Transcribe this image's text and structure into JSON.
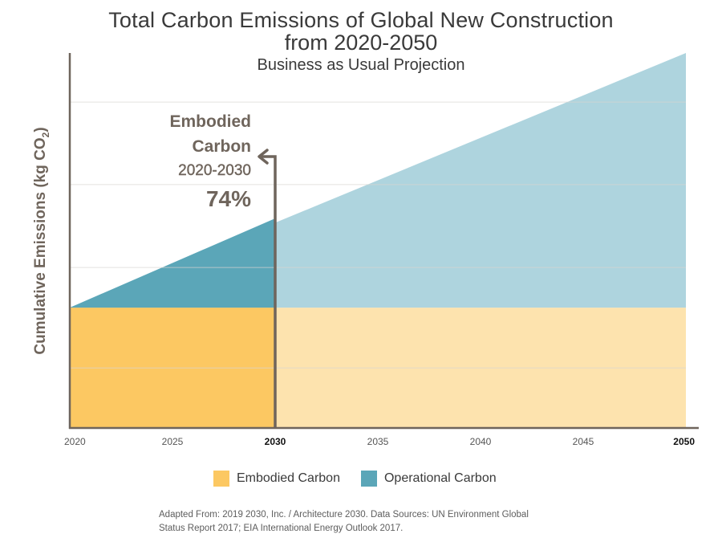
{
  "chart_data": {
    "type": "area",
    "title": "Total Carbon Emissions of Global New Construction",
    "title_line2": "from 2020-2050",
    "subtitle": "Business as Usual Projection",
    "xlabel": "",
    "ylabel": "Cumulative Emissions (kg CO",
    "ylabel_sub": "2",
    "ylabel_close": ")",
    "y_units": "relative (2050 total = 100)",
    "xlim": [
      2020,
      2050
    ],
    "ylim": [
      0,
      100
    ],
    "x_ticks": [
      {
        "label": "2020",
        "value": 2020,
        "bold": false
      },
      {
        "label": "2025",
        "value": 2025,
        "bold": false
      },
      {
        "label": "2030",
        "value": 2030,
        "bold": true
      },
      {
        "label": "2035",
        "value": 2035,
        "bold": false
      },
      {
        "label": "2040",
        "value": 2040,
        "bold": false
      },
      {
        "label": "2045",
        "value": 2045,
        "bold": false
      },
      {
        "label": "2050",
        "value": 2050,
        "bold": true
      }
    ],
    "gridlines_y": [
      16,
      42.8,
      64.9,
      86.9
    ],
    "grid": true,
    "series": [
      {
        "name": "Embodied Carbon",
        "color": "#fcc862",
        "faded_color": "#fde3ae",
        "x": [
          2020,
          2050
        ],
        "values": [
          32.1,
          32.1
        ]
      },
      {
        "name": "Operational Carbon",
        "color": "#5ba6b8",
        "faded_color": "#aed4de",
        "stacked_on": "Embodied Carbon",
        "x": [
          2020,
          2030,
          2050
        ],
        "cumulative_total": [
          32.1,
          55.9,
          100
        ]
      }
    ],
    "highlight_range": [
      2020,
      2030
    ],
    "divider_x": 2030,
    "annotation": {
      "lines": [
        "Embodied",
        "Carbon",
        "2020-2030"
      ],
      "value": "74%"
    },
    "legend": {
      "placement": "bottom-center",
      "entries": [
        {
          "label": "Embodied Carbon",
          "color": "#fcc862"
        },
        {
          "label": "Operational Carbon",
          "color": "#5ba6b8"
        }
      ]
    }
  },
  "source_note": {
    "line1": "Adapted From:  2019 2030, Inc. / Architecture 2030.  Data Sources: UN Environment Global",
    "line2": "Status Report 2017; EIA International Energy Outlook 2017."
  },
  "colors": {
    "axis": "#6f655c",
    "grid": "#d9d6d2",
    "text": "#3a3a3a"
  }
}
